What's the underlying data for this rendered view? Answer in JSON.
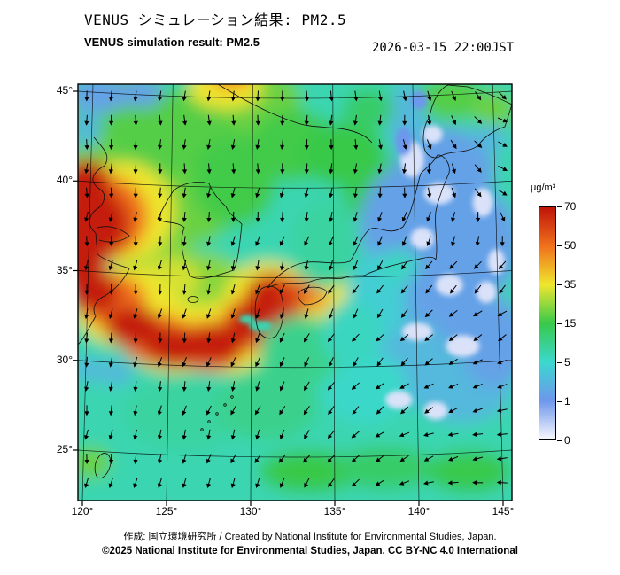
{
  "header": {
    "title_jp": "VENUS シミュレーション結果: PM2.5",
    "title_en": "VENUS simulation result: PM2.5",
    "datetime": "2026-03-15 22:00JST"
  },
  "footer": {
    "credit": "作成: 国立環境研究所 / Created by National Institute for Environmental Studies, Japan.",
    "copyright": "©2025 National Institute for Environmental Studies, Japan. CC BY-NC 4.0 International"
  },
  "chart_data": {
    "type": "heatmap",
    "title": "VENUS simulation result: PM2.5",
    "variable": "PM2.5 surface concentration",
    "datetime": "2026-03-15 22:00JST",
    "units": "μg/m³",
    "map_extent": {
      "lon_min": 119.7,
      "lon_max": 145.5,
      "lat_min": 22.2,
      "lat_max": 45.4
    },
    "x_ticks": [
      "120°",
      "125°",
      "130°",
      "135°",
      "140°",
      "145°"
    ],
    "y_ticks": [
      "45°",
      "40°",
      "35°",
      "30°",
      "25°"
    ],
    "grid": "on",
    "overlay": "surface wind vectors (black arrows)",
    "colorbar": {
      "label": "μg/m³",
      "position": "right",
      "ticks": [
        "70",
        "50",
        "35",
        "15",
        "5",
        "1",
        "0"
      ],
      "stops": [
        {
          "v": 0,
          "c": "#F8F7FD"
        },
        {
          "v": 1,
          "c": "#6D97EC"
        },
        {
          "v": 5,
          "c": "#3BD8CE"
        },
        {
          "v": 15,
          "c": "#38C94A"
        },
        {
          "v": 35,
          "c": "#F0E62E"
        },
        {
          "v": 50,
          "c": "#F0711C"
        },
        {
          "v": 70,
          "c": "#BF1408"
        }
      ]
    },
    "notable_features": [
      "High PM2.5 band (50-70+ μg/m³) over the Yellow Sea / East China Sea arcing from ~38°N 120°E southeast to Kyushu (~33°N 131°E)",
      "Moderate 15-35 μg/m³ over northeast China, Korea and the Japan Sea",
      "Low 1-5 μg/m³ over the Pacific east of Japan with patches below 1 μg/m³",
      "Winds generally northerly over the continent, turning cyclonic over the western Pacific"
    ],
    "background_value": 8,
    "regions_format": "[lon, lat, rx_deg, ry_deg, value_ugm3]",
    "regions": [
      [
        122.5,
        43.5,
        3.5,
        2.5,
        20
      ],
      [
        121.5,
        40.5,
        2.5,
        2.0,
        22
      ],
      [
        124.5,
        41.5,
        3.0,
        2.5,
        20
      ],
      [
        127.5,
        43.0,
        3.0,
        2.5,
        20
      ],
      [
        130.5,
        44.5,
        2.5,
        1.8,
        22
      ],
      [
        124.0,
        36.5,
        2.5,
        2.0,
        24
      ],
      [
        126.5,
        38.5,
        2.5,
        2.0,
        22
      ],
      [
        129.0,
        40.0,
        2.5,
        2.5,
        18
      ],
      [
        132.5,
        42.0,
        2.5,
        2.0,
        18
      ],
      [
        135.5,
        41.5,
        2.5,
        1.8,
        16
      ],
      [
        137.5,
        39.5,
        2.0,
        1.8,
        14
      ],
      [
        127.0,
        34.5,
        2.5,
        1.5,
        24
      ],
      [
        125.0,
        34.5,
        2.0,
        1.2,
        30
      ],
      [
        121.0,
        44.8,
        1.8,
        1.0,
        2
      ],
      [
        123.5,
        44.9,
        1.3,
        0.8,
        2
      ],
      [
        120.3,
        43.0,
        0.8,
        1.2,
        3
      ],
      [
        128.5,
        45.2,
        2.2,
        1.2,
        34
      ],
      [
        128.8,
        45.9,
        1.2,
        0.7,
        52
      ],
      [
        122.3,
        38.3,
        3.2,
        2.8,
        34
      ],
      [
        121.3,
        38.0,
        2.6,
        2.3,
        52
      ],
      [
        120.6,
        37.6,
        2.2,
        2.0,
        66
      ],
      [
        120.2,
        39.8,
        1.6,
        1.4,
        66
      ],
      [
        120.0,
        35.5,
        1.5,
        1.8,
        66
      ],
      [
        122.5,
        33.0,
        3.0,
        2.2,
        34
      ],
      [
        125.5,
        31.3,
        3.0,
        2.0,
        34
      ],
      [
        128.5,
        31.3,
        2.8,
        2.0,
        34
      ],
      [
        131.0,
        33.3,
        2.6,
        2.2,
        34
      ],
      [
        133.0,
        32.5,
        2.0,
        1.6,
        34
      ],
      [
        134.5,
        34.0,
        1.5,
        1.0,
        34
      ],
      [
        121.8,
        33.3,
        2.0,
        1.5,
        52
      ],
      [
        124.5,
        31.2,
        2.2,
        1.4,
        52
      ],
      [
        127.5,
        30.8,
        2.2,
        1.4,
        52
      ],
      [
        130.0,
        32.0,
        1.8,
        1.5,
        52
      ],
      [
        131.4,
        33.4,
        1.8,
        1.5,
        52
      ],
      [
        120.7,
        33.8,
        1.5,
        1.2,
        66
      ],
      [
        123.0,
        31.9,
        1.7,
        1.1,
        66
      ],
      [
        125.5,
        30.7,
        1.8,
        1.1,
        66
      ],
      [
        128.0,
        30.9,
        1.7,
        1.1,
        66
      ],
      [
        130.0,
        32.2,
        1.3,
        1.1,
        66
      ],
      [
        131.3,
        32.6,
        1.5,
        1.3,
        66
      ],
      [
        131.0,
        33.8,
        1.2,
        1.0,
        66
      ],
      [
        132.8,
        33.6,
        1.1,
        0.9,
        60
      ],
      [
        133.8,
        33.4,
        0.8,
        0.6,
        45
      ],
      [
        121.5,
        27.5,
        3.0,
        2.2,
        8
      ],
      [
        126.0,
        27.0,
        3.5,
        2.0,
        9
      ],
      [
        131.0,
        27.5,
        3.0,
        2.0,
        10
      ],
      [
        120.5,
        24.3,
        1.2,
        0.9,
        22
      ],
      [
        122.0,
        29.3,
        1.0,
        0.7,
        3
      ],
      [
        120.3,
        29.5,
        0.9,
        0.7,
        3
      ],
      [
        133.5,
        23.8,
        3.0,
        1.2,
        16
      ],
      [
        138.0,
        24.0,
        3.0,
        1.2,
        12
      ],
      [
        143.0,
        23.8,
        2.5,
        1.2,
        14
      ],
      [
        139.5,
        37.5,
        3.0,
        3.5,
        2
      ],
      [
        141.5,
        40.5,
        3.0,
        2.5,
        2
      ],
      [
        141.0,
        33.5,
        3.5,
        3.0,
        2
      ],
      [
        143.5,
        36.5,
        2.5,
        3.0,
        2
      ],
      [
        139.0,
        30.0,
        3.0,
        2.5,
        3
      ],
      [
        142.5,
        28.5,
        3.0,
        2.0,
        3
      ],
      [
        137.5,
        33.5,
        1.8,
        2.5,
        4
      ],
      [
        136.8,
        28.5,
        2.5,
        2.0,
        6
      ],
      [
        144.5,
        31.0,
        2.0,
        2.5,
        2
      ],
      [
        140.5,
        35.8,
        1.5,
        1.2,
        2
      ],
      [
        139.3,
        43.5,
        1.2,
        2.0,
        3
      ],
      [
        142.0,
        44.6,
        2.0,
        1.2,
        20
      ],
      [
        144.5,
        44.0,
        1.3,
        1.0,
        22
      ],
      [
        144.2,
        42.4,
        1.0,
        0.8,
        3
      ],
      [
        137.0,
        44.0,
        1.5,
        1.2,
        12
      ],
      [
        134.5,
        36.5,
        2.0,
        2.5,
        9
      ],
      [
        133.0,
        30.5,
        2.5,
        2.0,
        10
      ],
      [
        136.0,
        31.5,
        1.8,
        1.8,
        7
      ],
      [
        138.8,
        35.3,
        1.2,
        0.9,
        7
      ]
    ],
    "detail_regions": [
      [
        139.6,
        41.2,
        0.7,
        1.0,
        0.3
      ],
      [
        141.2,
        39.3,
        0.9,
        0.6,
        0.3
      ],
      [
        140.2,
        36.8,
        0.7,
        0.6,
        0.3
      ],
      [
        141.8,
        34.2,
        0.8,
        0.6,
        0.3
      ],
      [
        139.9,
        31.6,
        0.9,
        0.5,
        0.3
      ],
      [
        142.6,
        30.8,
        1.0,
        0.6,
        0.3
      ],
      [
        144.0,
        33.8,
        0.6,
        0.6,
        0.3
      ],
      [
        138.8,
        27.8,
        0.8,
        0.5,
        0.3
      ],
      [
        141.0,
        27.2,
        0.7,
        0.5,
        0.3
      ],
      [
        143.8,
        38.8,
        0.6,
        0.8,
        0.3
      ],
      [
        140.8,
        42.6,
        0.6,
        0.5,
        0.3
      ],
      [
        144.6,
        35.5,
        0.5,
        0.7,
        0.3
      ],
      [
        130.6,
        31.9,
        0.7,
        0.3,
        8
      ],
      [
        129.8,
        32.3,
        0.5,
        0.25,
        8
      ],
      [
        139.1,
        42.2,
        0.5,
        0.8,
        1
      ],
      [
        140.0,
        44.5,
        0.5,
        0.5,
        1
      ]
    ],
    "wind_overlay": {
      "arrow_color": "#000000",
      "description": "regular grid of small black wind arrows over the whole map"
    }
  }
}
